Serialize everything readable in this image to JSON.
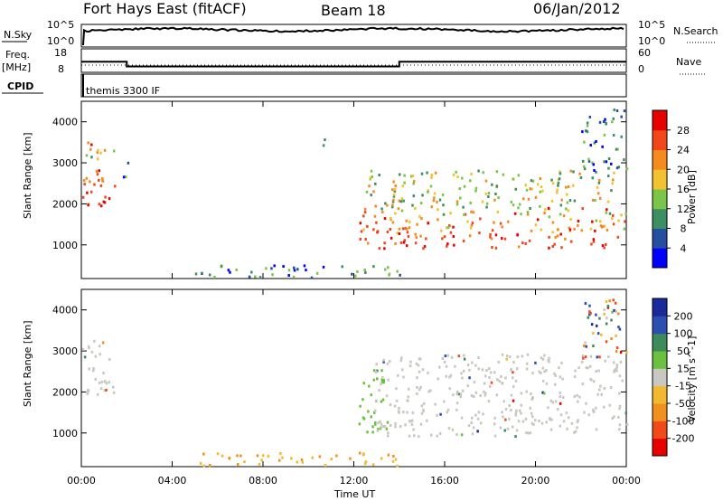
{
  "header": {
    "title": "Fort Hays East (fitACF)",
    "beam": "Beam 18",
    "date": "06/Jan/2012"
  },
  "top_panels": {
    "nsky": {
      "label": "N.Sky",
      "ticks": [
        "10^5",
        "10^0"
      ],
      "right_label": "N.Search",
      "right_ticks": [
        "10^5",
        "10^0"
      ]
    },
    "freq": {
      "label_line1": "Freq.",
      "label_line2": "[MHz]",
      "ticks": [
        "18",
        "8"
      ],
      "right_label": "Nave",
      "right_ticks": [
        "60",
        "0"
      ],
      "steps": [
        {
          "from": "00:00",
          "to": "02:00",
          "mhz": 12.5
        },
        {
          "from": "02:00",
          "to": "14:00",
          "mhz": 10.5
        },
        {
          "from": "14:00",
          "to": "24:00",
          "mhz": 12.5
        }
      ]
    },
    "cpid": {
      "label": "CPID",
      "program": "themis 3300 IF"
    }
  },
  "colors": {
    "velocity_low": "#0000ff",
    "velocity_high": "#ff0000",
    "ground_scatter": "#c8c8c0"
  },
  "chart_data": [
    {
      "type": "heatmap",
      "panel": "power",
      "xlabel": "",
      "ylabel": "Slant Range [km]",
      "y_ticks": [
        1000,
        2000,
        3000,
        4000
      ],
      "ylim": [
        180,
        4500
      ],
      "x_ticks": [
        "00:00",
        "04:00",
        "08:00",
        "12:00",
        "16:00",
        "20:00",
        "00:00"
      ],
      "xlim_hours": [
        0,
        24
      ],
      "colorbar": {
        "label": "Power [dB]",
        "ticks": [
          "4",
          "8",
          "12",
          "16",
          "20",
          "24",
          "28"
        ],
        "colors": [
          "#0000ff",
          "#264ea0",
          "#3b8f62",
          "#7ac54a",
          "#f2c230",
          "#f58b1f",
          "#f2471b",
          "#e60000"
        ]
      },
      "regions": [
        {
          "t0": 0.0,
          "t1": 1.5,
          "r0": 1900,
          "r1": 3500,
          "level": "high"
        },
        {
          "t0": 1.8,
          "t1": 2.1,
          "r0": 2600,
          "r1": 3200,
          "level": "low"
        },
        {
          "t0": 10.5,
          "t1": 10.9,
          "r0": 3400,
          "r1": 3800,
          "level": "low"
        },
        {
          "t0": 12.2,
          "t1": 24.0,
          "r0": 900,
          "r1": 1900,
          "level": "high"
        },
        {
          "t0": 12.5,
          "t1": 23.5,
          "r0": 1900,
          "r1": 2800,
          "level": "mid"
        },
        {
          "t0": 22.0,
          "t1": 24.0,
          "r0": 2800,
          "r1": 4300,
          "level": "low"
        },
        {
          "t0": 5.0,
          "t1": 14.0,
          "r0": 180,
          "r1": 500,
          "level": "low"
        }
      ]
    },
    {
      "type": "heatmap",
      "panel": "velocity",
      "xlabel": "Time UT",
      "ylabel": "Slant Range [km]",
      "y_ticks": [
        1000,
        2000,
        3000,
        4000
      ],
      "ylim": [
        180,
        4500
      ],
      "x_ticks": [
        "00:00",
        "04:00",
        "08:00",
        "12:00",
        "16:00",
        "20:00",
        "00:00"
      ],
      "xlim_hours": [
        0,
        24
      ],
      "colorbar": {
        "label": "Velocity [m s^-1]",
        "ticks": [
          "200",
          "100",
          "50",
          "15",
          "-15",
          "-50",
          "-100",
          "-200"
        ],
        "colors": [
          "#1a2a9a",
          "#2b4fb0",
          "#3d8a5a",
          "#6cc040",
          "#c8c8c0",
          "#f2b830",
          "#f0901e",
          "#f04a1a",
          "#e60000"
        ]
      },
      "regions": [
        {
          "t0": 0.0,
          "t1": 1.5,
          "r0": 1900,
          "r1": 3300,
          "level": "ground"
        },
        {
          "t0": 12.2,
          "t1": 13.5,
          "r0": 1000,
          "r1": 2600,
          "level": "green"
        },
        {
          "t0": 12.8,
          "t1": 24.0,
          "r0": 900,
          "r1": 2900,
          "level": "ground"
        },
        {
          "t0": 5.0,
          "t1": 14.0,
          "r0": 180,
          "r1": 500,
          "level": "orange"
        },
        {
          "t0": 22.0,
          "t1": 24.0,
          "r0": 2800,
          "r1": 4300,
          "level": "mixed"
        }
      ]
    }
  ]
}
